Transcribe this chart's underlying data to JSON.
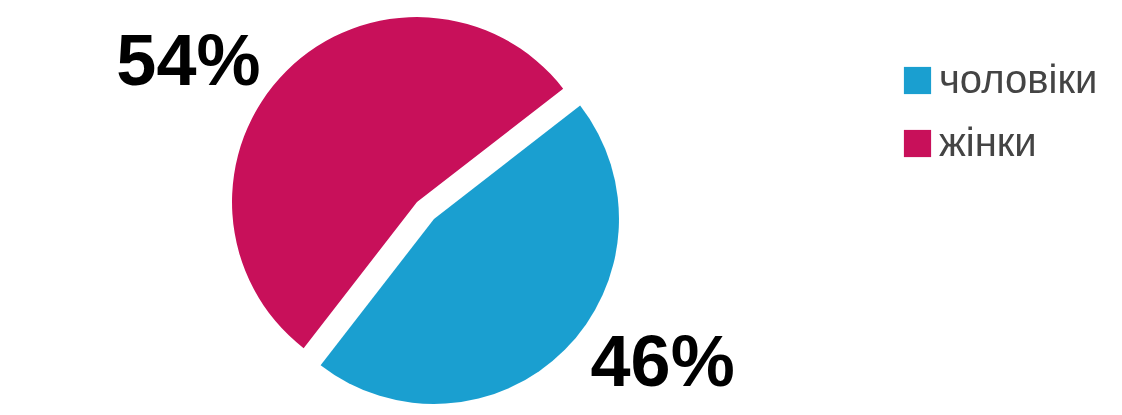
{
  "chart_data": {
    "type": "pie",
    "categories": [
      "чоловіки",
      "жінки"
    ],
    "values": [
      46,
      54
    ],
    "colors": [
      "#1a9fd0",
      "#c8105a"
    ],
    "value_labels": [
      "46%",
      "54%"
    ],
    "legend": "right"
  }
}
